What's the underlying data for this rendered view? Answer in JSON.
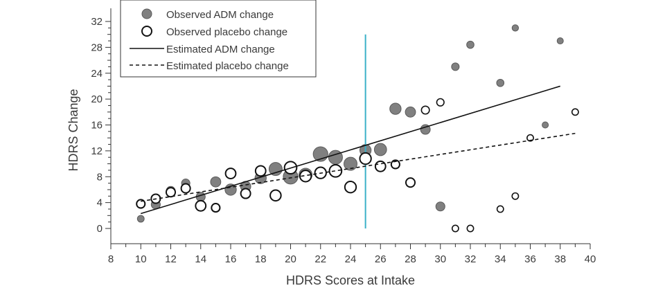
{
  "chart_data": {
    "type": "scatter",
    "xlabel": "HDRS Scores at Intake",
    "ylabel": "HDRS Change",
    "xlim": [
      8,
      40
    ],
    "ylim": [
      -2,
      33
    ],
    "x_ticks": [
      8,
      10,
      12,
      14,
      16,
      18,
      20,
      22,
      24,
      26,
      28,
      30,
      32,
      34,
      36,
      38,
      40
    ],
    "y_ticks": [
      0,
      4,
      8,
      12,
      16,
      20,
      24,
      28,
      32
    ],
    "grid": false,
    "legend_position": "top-left",
    "legend": [
      "Observed ADM change",
      "Observed placebo change",
      "Estimated ADM change",
      "Estimated placebo change"
    ],
    "threshold_line": {
      "x": 25,
      "y_range": [
        0,
        30
      ],
      "color": "#3ab0c8"
    },
    "colors": {
      "adm_fill": "#808080",
      "adm_stroke": "#5a5a5a",
      "placebo_fill": "#ffffff",
      "placebo_stroke": "#111111",
      "line": "#111111"
    },
    "series": [
      {
        "name": "Observed ADM change",
        "kind": "bubble",
        "points": [
          {
            "x": 10,
            "y": 1.5,
            "size": 1.5
          },
          {
            "x": 11,
            "y": 3.7,
            "size": 3
          },
          {
            "x": 12,
            "y": 5.8,
            "size": 3
          },
          {
            "x": 13,
            "y": 7.0,
            "size": 2.5
          },
          {
            "x": 14,
            "y": 4.9,
            "size": 3
          },
          {
            "x": 15,
            "y": 7.2,
            "size": 4
          },
          {
            "x": 16,
            "y": 6.0,
            "size": 5
          },
          {
            "x": 17,
            "y": 6.5,
            "size": 4
          },
          {
            "x": 18,
            "y": 7.8,
            "size": 5
          },
          {
            "x": 19,
            "y": 9.2,
            "size": 7
          },
          {
            "x": 20,
            "y": 8.0,
            "size": 9
          },
          {
            "x": 21,
            "y": 8.3,
            "size": 7
          },
          {
            "x": 22,
            "y": 11.5,
            "size": 9
          },
          {
            "x": 23,
            "y": 11.0,
            "size": 8
          },
          {
            "x": 24,
            "y": 10.0,
            "size": 7
          },
          {
            "x": 25,
            "y": 12.1,
            "size": 5
          },
          {
            "x": 26,
            "y": 12.2,
            "size": 6
          },
          {
            "x": 27,
            "y": 18.5,
            "size": 5
          },
          {
            "x": 28,
            "y": 18.0,
            "size": 4
          },
          {
            "x": 29,
            "y": 15.3,
            "size": 3.5
          },
          {
            "x": 30,
            "y": 3.4,
            "size": 3
          },
          {
            "x": 31,
            "y": 25.0,
            "size": 2
          },
          {
            "x": 32,
            "y": 28.4,
            "size": 1.8
          },
          {
            "x": 34,
            "y": 22.5,
            "size": 1.8
          },
          {
            "x": 35,
            "y": 31.0,
            "size": 1.3
          },
          {
            "x": 37,
            "y": 16.0,
            "size": 1.2
          },
          {
            "x": 38,
            "y": 29.0,
            "size": 1.2
          }
        ]
      },
      {
        "name": "Observed placebo change",
        "kind": "bubble",
        "points": [
          {
            "x": 10,
            "y": 3.8,
            "size": 2.5
          },
          {
            "x": 11,
            "y": 4.6,
            "size": 3
          },
          {
            "x": 12,
            "y": 5.6,
            "size": 3
          },
          {
            "x": 13,
            "y": 6.2,
            "size": 3
          },
          {
            "x": 14,
            "y": 3.5,
            "size": 4
          },
          {
            "x": 15,
            "y": 3.2,
            "size": 2.5
          },
          {
            "x": 16,
            "y": 8.5,
            "size": 4
          },
          {
            "x": 17,
            "y": 5.4,
            "size": 3.5
          },
          {
            "x": 18,
            "y": 8.9,
            "size": 4
          },
          {
            "x": 19,
            "y": 5.1,
            "size": 4.5
          },
          {
            "x": 20,
            "y": 9.4,
            "size": 6
          },
          {
            "x": 21,
            "y": 8.1,
            "size": 5
          },
          {
            "x": 22,
            "y": 8.6,
            "size": 5
          },
          {
            "x": 23,
            "y": 8.9,
            "size": 6
          },
          {
            "x": 24,
            "y": 6.4,
            "size": 5
          },
          {
            "x": 25,
            "y": 10.8,
            "size": 5
          },
          {
            "x": 26,
            "y": 9.6,
            "size": 4
          },
          {
            "x": 27,
            "y": 9.9,
            "size": 2.5
          },
          {
            "x": 28,
            "y": 7.1,
            "size": 3
          },
          {
            "x": 29,
            "y": 18.3,
            "size": 2.2
          },
          {
            "x": 30,
            "y": 19.5,
            "size": 1.8
          },
          {
            "x": 31,
            "y": 0.0,
            "size": 1.3
          },
          {
            "x": 32,
            "y": 0.0,
            "size": 1.3
          },
          {
            "x": 34,
            "y": 3.0,
            "size": 1.3
          },
          {
            "x": 35,
            "y": 5.0,
            "size": 1.3
          },
          {
            "x": 36,
            "y": 14.0,
            "size": 1.3
          },
          {
            "x": 39,
            "y": 18.0,
            "size": 1.3
          }
        ]
      },
      {
        "name": "Estimated ADM change",
        "kind": "line",
        "x": [
          10,
          38
        ],
        "y": [
          2.3,
          22.0
        ]
      },
      {
        "name": "Estimated placebo change",
        "kind": "dashed-line",
        "x": [
          10,
          39
        ],
        "y": [
          4.2,
          14.7
        ]
      }
    ]
  }
}
